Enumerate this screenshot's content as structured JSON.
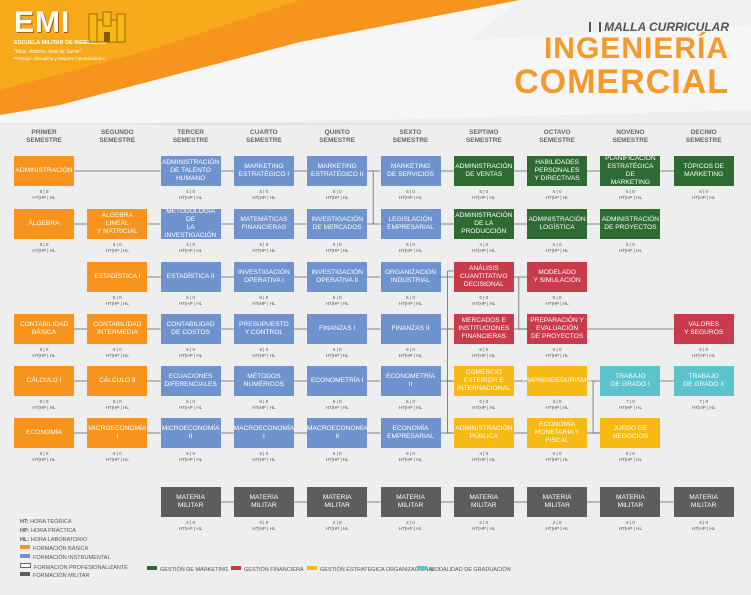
{
  "header": {
    "logo_main": "EMI",
    "logo_sub": "ESCUELA MILITAR DE INGENIERÍA",
    "logo_motto": "\"Mcal. Antonio José de Sucre\"",
    "logo_motto2": "Prestigio, Disciplina y Mejores Oportunidades",
    "title_top": "MALLA CURRICULAR",
    "title_line1": "INGENIERÍA",
    "title_line2": "COMERCIAL"
  },
  "colors": {
    "basica": "#f7941d",
    "instrumental": "#6f93cf",
    "marketing": "#2e6b32",
    "financiera": "#c73b4a",
    "organizacional": "#f6b916",
    "graduacion": "#5cc2cc",
    "militar": "#5d5d5d"
  },
  "semesters": [
    [
      "PRIMER",
      "SEMESTRE"
    ],
    [
      "SEGUNDO",
      "SEMESTRE"
    ],
    [
      "TERCER",
      "SEMESTRE"
    ],
    [
      "CUARTO",
      "SEMESTRE"
    ],
    [
      "QUINTO",
      "SEMESTRE"
    ],
    [
      "SEXTO",
      "SEMESTRE"
    ],
    [
      "SEPTIMO",
      "SEMESTRE"
    ],
    [
      "OCTAVO",
      "SEMESTRE"
    ],
    [
      "NOVENO",
      "SEMESTRE"
    ],
    [
      "DECIMO",
      "SEMESTRE"
    ]
  ],
  "hours_label": "HT|HP | HL",
  "courses": [
    {
      "col": 0,
      "row": 0,
      "cat": "basica",
      "lines": [
        "ADMINISTRACIÓN"
      ],
      "hours": "5 | 0"
    },
    {
      "col": 0,
      "row": 1,
      "cat": "basica",
      "lines": [
        "ÁLGEBRA"
      ],
      "hours": "6 | 0"
    },
    {
      "col": 0,
      "row": 3,
      "cat": "basica",
      "lines": [
        "CONTABILIDAD",
        "BÁSICA"
      ],
      "hours": "6 | 0"
    },
    {
      "col": 0,
      "row": 4,
      "cat": "basica",
      "lines": [
        "CÁLCULO I"
      ],
      "hours": "6 | 0"
    },
    {
      "col": 0,
      "row": 5,
      "cat": "basica",
      "lines": [
        "ECONOMÍA"
      ],
      "hours": "6 | 0"
    },
    {
      "col": 1,
      "row": 1,
      "cat": "basica",
      "lines": [
        "ÁLGEBRA LINEAL",
        "Y MATRICIAL"
      ],
      "hours": "6 | 0"
    },
    {
      "col": 1,
      "row": 2,
      "cat": "basica",
      "lines": [
        "ESTADÍSTICA I"
      ],
      "hours": "5 | 0"
    },
    {
      "col": 1,
      "row": 3,
      "cat": "basica",
      "lines": [
        "CONTABILIDAD",
        "INTERMEDIA"
      ],
      "hours": "6 | 0"
    },
    {
      "col": 1,
      "row": 4,
      "cat": "basica",
      "lines": [
        "CÁLCULO II"
      ],
      "hours": "6 | 0"
    },
    {
      "col": 1,
      "row": 5,
      "cat": "basica",
      "lines": [
        "MICROECONOMÍA",
        "I"
      ],
      "hours": "6 | 0"
    },
    {
      "col": 2,
      "row": 0,
      "cat": "instrumental",
      "lines": [
        "ADMINISTRACIÓN",
        "DE TALENTO",
        "HUMANO"
      ],
      "hours": "4 | 0"
    },
    {
      "col": 2,
      "row": 1,
      "cat": "instrumental",
      "lines": [
        "METODOLOGÍA DE",
        "LA INVESTIGACIÓN"
      ],
      "hours": "4 | 0"
    },
    {
      "col": 2,
      "row": 2,
      "cat": "instrumental",
      "lines": [
        "ESTADÍSTICA II"
      ],
      "hours": "5 | 0"
    },
    {
      "col": 2,
      "row": 3,
      "cat": "instrumental",
      "lines": [
        "CONTABILIDAD",
        "DE COSTOS"
      ],
      "hours": "5 | 0"
    },
    {
      "col": 2,
      "row": 4,
      "cat": "instrumental",
      "lines": [
        "ECUACIONES",
        "DIFERENCIALES"
      ],
      "hours": "5 | 0"
    },
    {
      "col": 2,
      "row": 5,
      "cat": "instrumental",
      "lines": [
        "MICROECONOMÍA",
        "II"
      ],
      "hours": "5 | 0"
    },
    {
      "col": 3,
      "row": 0,
      "cat": "instrumental",
      "lines": [
        "MARKETING",
        "ESTRATÉGICO I"
      ],
      "hours": "5 | 0"
    },
    {
      "col": 3,
      "row": 1,
      "cat": "instrumental",
      "lines": [
        "MATEMÁTICAS",
        "FINANCIERAS"
      ],
      "hours": "5 | 0"
    },
    {
      "col": 3,
      "row": 2,
      "cat": "instrumental",
      "lines": [
        "INVESTIGACIÓN",
        "OPERATIVA I"
      ],
      "hours": "5 | 0"
    },
    {
      "col": 3,
      "row": 3,
      "cat": "instrumental",
      "lines": [
        "PRESUPUESTO",
        "Y CONTROL"
      ],
      "hours": "6 | 0"
    },
    {
      "col": 3,
      "row": 4,
      "cat": "instrumental",
      "lines": [
        "MÉTODOS",
        "NUMÉRICOS"
      ],
      "hours": "5 | 0"
    },
    {
      "col": 3,
      "row": 5,
      "cat": "instrumental",
      "lines": [
        "MACROECONOMÍA",
        "I"
      ],
      "hours": "5 | 0"
    },
    {
      "col": 4,
      "row": 0,
      "cat": "instrumental",
      "lines": [
        "MARKETING",
        "ESTRATÉGICO II"
      ],
      "hours": "5 | 0"
    },
    {
      "col": 4,
      "row": 1,
      "cat": "instrumental",
      "lines": [
        "INVESTIGACIÓN",
        "DE MERCADOS"
      ],
      "hours": "5 | 0"
    },
    {
      "col": 4,
      "row": 2,
      "cat": "instrumental",
      "lines": [
        "INVESTIGACIÓN",
        "OPERATIVA II"
      ],
      "hours": "5 | 0"
    },
    {
      "col": 4,
      "row": 3,
      "cat": "instrumental",
      "lines": [
        "FINANZAS I"
      ],
      "hours": "6 | 0"
    },
    {
      "col": 4,
      "row": 4,
      "cat": "instrumental",
      "lines": [
        "ECONOMETRÍA I"
      ],
      "hours": "6 | 0"
    },
    {
      "col": 4,
      "row": 5,
      "cat": "instrumental",
      "lines": [
        "MACROECONOMÍA",
        "II"
      ],
      "hours": "6 | 0"
    },
    {
      "col": 5,
      "row": 0,
      "cat": "instrumental",
      "lines": [
        "MARKETING",
        "DE SERVICIOS"
      ],
      "hours": "6 | 0"
    },
    {
      "col": 5,
      "row": 1,
      "cat": "instrumental",
      "lines": [
        "LEGISLACIÓN",
        "EMPRESARIAL"
      ],
      "hours": "5 | 0"
    },
    {
      "col": 5,
      "row": 2,
      "cat": "instrumental",
      "lines": [
        "ORGANIZACIÓN",
        "INDUSTRIAL"
      ],
      "hours": "5 | 0"
    },
    {
      "col": 5,
      "row": 3,
      "cat": "instrumental",
      "lines": [
        "FINANZAS II"
      ],
      "hours": "6 | 0"
    },
    {
      "col": 5,
      "row": 4,
      "cat": "instrumental",
      "lines": [
        "ECONOMETRÍA II"
      ],
      "hours": "6 | 0"
    },
    {
      "col": 5,
      "row": 5,
      "cat": "instrumental",
      "lines": [
        "ECONOMÍA",
        "EMPRESARIAL"
      ],
      "hours": "6 | 0"
    },
    {
      "col": 6,
      "row": 0,
      "cat": "marketing",
      "lines": [
        "ADMINISTRACIÓN",
        "DE VENTAS"
      ],
      "hours": "5 | 0"
    },
    {
      "col": 6,
      "row": 1,
      "cat": "marketing",
      "lines": [
        "ADMINISTRACIÓN",
        "DE LA PRODUCCIÓN"
      ],
      "hours": "4 | 0"
    },
    {
      "col": 6,
      "row": 2,
      "cat": "financiera",
      "lines": [
        "ANÁLISIS",
        "CUANTITATIVO",
        "DECISIONAL"
      ],
      "hours": "6 | 0"
    },
    {
      "col": 6,
      "row": 3,
      "cat": "financiera",
      "lines": [
        "MERCADOS E",
        "INSTITUCIONES",
        "FINANCIERAS"
      ],
      "hours": "5 | 0"
    },
    {
      "col": 6,
      "row": 4,
      "cat": "organizacional",
      "lines": [
        "COMERCIO",
        "EXTERIOR E",
        "INTERNACIONAL"
      ],
      "hours": "6 | 0"
    },
    {
      "col": 6,
      "row": 5,
      "cat": "organizacional",
      "lines": [
        "ADMINISTRACIÓN",
        "PÚBLICA"
      ],
      "hours": "4 | 0"
    },
    {
      "col": 7,
      "row": 0,
      "cat": "marketing",
      "lines": [
        "HABILIDADES",
        "PERSONALES",
        "Y DIRECTIVAS"
      ],
      "hours": "5 | 0"
    },
    {
      "col": 7,
      "row": 1,
      "cat": "marketing",
      "lines": [
        "ADMINISTRACIÓN",
        "LOGÍSTICA"
      ],
      "hours": "5 | 0"
    },
    {
      "col": 7,
      "row": 2,
      "cat": "financiera",
      "lines": [
        "MODELADO",
        "Y SIMULACIÓN"
      ],
      "hours": "5 | 0"
    },
    {
      "col": 7,
      "row": 3,
      "cat": "financiera",
      "lines": [
        "PREPARACIÓN Y",
        "EVALUACIÓN",
        "DE PROYECTOS"
      ],
      "hours": "5 | 0"
    },
    {
      "col": 7,
      "row": 4,
      "cat": "organizacional",
      "lines": [
        "EMPRENDEDURISMO"
      ],
      "hours": "4 | 0"
    },
    {
      "col": 7,
      "row": 5,
      "cat": "organizacional",
      "lines": [
        "ECONOMÍA",
        "MONETARIA Y",
        "FISCAL"
      ],
      "hours": "5 | 0"
    },
    {
      "col": 8,
      "row": 0,
      "cat": "marketing",
      "lines": [
        "PLANIFICACIÓN",
        "ESTRATÉGICA DE",
        "MARKETING"
      ],
      "hours": "5 | 0"
    },
    {
      "col": 8,
      "row": 1,
      "cat": "marketing",
      "lines": [
        "ADMINISTRACIÓN",
        "DE PROYECTOS"
      ],
      "hours": "5 | 0"
    },
    {
      "col": 8,
      "row": 4,
      "cat": "graduacion",
      "lines": [
        "TRABAJO",
        "DE GRADO I"
      ],
      "hours": "7 | 0"
    },
    {
      "col": 8,
      "row": 5,
      "cat": "organizacional",
      "lines": [
        "JUEGO DE",
        "NEGOCIOS"
      ],
      "hours": "5 | 0"
    },
    {
      "col": 9,
      "row": 0,
      "cat": "marketing",
      "lines": [
        "TÓPICOS DE",
        "MARKETING"
      ],
      "hours": "6 | 0"
    },
    {
      "col": 9,
      "row": 3,
      "cat": "financiera",
      "lines": [
        "VALORES",
        "Y SEGUROS"
      ],
      "hours": "5 | 0"
    },
    {
      "col": 9,
      "row": 4,
      "cat": "graduacion",
      "lines": [
        "TRABAJO",
        "DE GRADO II"
      ],
      "hours": "7 | 0"
    }
  ],
  "military": {
    "lines": [
      "MATERIA",
      "MILITAR"
    ],
    "hours": "2 | 0",
    "from_col": 2
  },
  "legend_left": [
    {
      "abbr": "HT:",
      "text": "HORA TEÓRICA",
      "swatch": null
    },
    {
      "abbr": "HP:",
      "text": "HORA PRÁCTICA",
      "swatch": null
    },
    {
      "abbr": "HL:",
      "text": "HORA LABORATORIO",
      "swatch": null
    },
    {
      "abbr": "",
      "text": "FORMACIÓN BÁSICA",
      "swatch": "basica"
    },
    {
      "abbr": "",
      "text": "FORMACIÓN INSTRUMENTAL",
      "swatch": "instrumental"
    },
    {
      "abbr": "",
      "text": "FORMACIÓN PROFESIONALIZANTE",
      "swatch": "outline"
    },
    {
      "abbr": "",
      "text": "FORMACIÓN MILITAR",
      "swatch": "militar"
    }
  ],
  "legend_bottom": [
    {
      "text": "GESTIÓN DE MARKETING",
      "swatch": "marketing"
    },
    {
      "text": "GESTIÓN FINANCIERA",
      "swatch": "financiera"
    },
    {
      "text": "GESTIÓN ESTRATEGICA ORGANIZACIONAL",
      "swatch": "organizacional"
    },
    {
      "text": "MODALIDAD DE GRADUACIÓN",
      "swatch": "graduacion"
    }
  ]
}
